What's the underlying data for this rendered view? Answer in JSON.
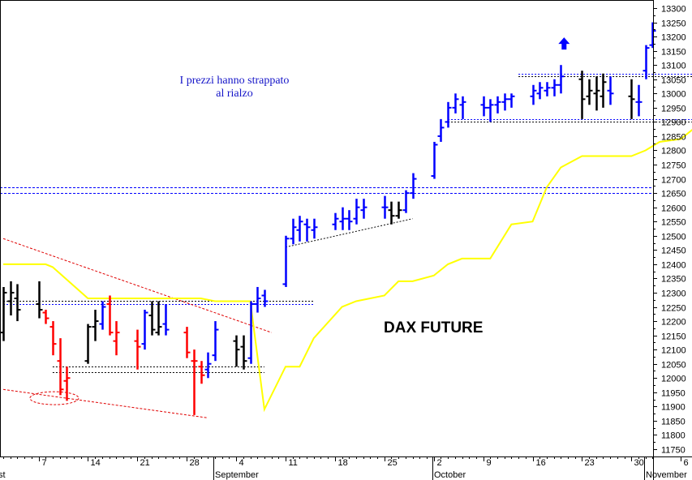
{
  "chart_data": {
    "type": "ohlc",
    "title": "DAX FUTURE",
    "annotation": {
      "line1": "I prezzi hanno strappato",
      "line2": "al rialzo"
    },
    "y_axis": {
      "min": 11725,
      "max": 13310,
      "step": 50,
      "position": "right",
      "tick_labels": [
        "13300",
        "13250",
        "13200",
        "13150",
        "13100",
        "13050",
        "13000",
        "12950",
        "12900",
        "12850",
        "12800",
        "12750",
        "12700",
        "12650",
        "12600",
        "12550",
        "12500",
        "12450",
        "12400",
        "12350",
        "12300",
        "12250",
        "12200",
        "12150",
        "12100",
        "12050",
        "12000",
        "11950",
        "11900",
        "11850",
        "11800",
        "11750"
      ]
    },
    "x_axis": {
      "start_date": "2017-08-02",
      "end_date": "2017-11-08",
      "day_labels": [
        {
          "date": "2017-08-07",
          "label": "7"
        },
        {
          "date": "2017-08-14",
          "label": "14"
        },
        {
          "date": "2017-08-21",
          "label": "21"
        },
        {
          "date": "2017-08-28",
          "label": "28"
        },
        {
          "date": "2017-09-04",
          "label": "4"
        },
        {
          "date": "2017-09-11",
          "label": "11"
        },
        {
          "date": "2017-09-18",
          "label": "18"
        },
        {
          "date": "2017-09-25",
          "label": "25"
        },
        {
          "date": "2017-10-02",
          "label": "2"
        },
        {
          "date": "2017-10-09",
          "label": "9"
        },
        {
          "date": "2017-10-16",
          "label": "16"
        },
        {
          "date": "2017-10-23",
          "label": "23"
        },
        {
          "date": "2017-10-30",
          "label": "30"
        },
        {
          "date": "2017-11-06",
          "label": "6"
        }
      ],
      "month_labels": [
        {
          "date": "2017-08-02",
          "label": "st"
        },
        {
          "date": "2017-09-01",
          "label": "September"
        },
        {
          "date": "2017-10-02",
          "label": "October"
        },
        {
          "date": "2017-11-01",
          "label": "November"
        }
      ]
    },
    "colors": {
      "up": "#0000ff",
      "down": "#ff0000",
      "neutral": "#000000",
      "stop_line": "#ffff00",
      "channel": "#ff0000",
      "band": "#0000ff"
    },
    "bars": [
      {
        "date": "2017-08-02",
        "o": 12160,
        "h": 12320,
        "l": 12130,
        "c": 12300,
        "color": "neutral"
      },
      {
        "date": "2017-08-03",
        "o": 12270,
        "h": 12340,
        "l": 12220,
        "c": 12300,
        "color": "neutral"
      },
      {
        "date": "2017-08-04",
        "o": 12280,
        "h": 12330,
        "l": 12200,
        "c": 12240,
        "color": "neutral"
      },
      {
        "date": "2017-08-07",
        "o": 12260,
        "h": 12340,
        "l": 12210,
        "c": 12240,
        "color": "neutral"
      },
      {
        "date": "2017-08-08",
        "o": 12230,
        "h": 12240,
        "l": 12190,
        "c": 12210,
        "color": "down"
      },
      {
        "date": "2017-08-09",
        "o": 12180,
        "h": 12200,
        "l": 12080,
        "c": 12120,
        "color": "down"
      },
      {
        "date": "2017-08-10",
        "o": 12060,
        "h": 12140,
        "l": 11940,
        "c": 11960,
        "color": "down"
      },
      {
        "date": "2017-08-11",
        "o": 11990,
        "h": 12040,
        "l": 11920,
        "c": 12000,
        "color": "down"
      },
      {
        "date": "2017-08-14",
        "o": 12060,
        "h": 12190,
        "l": 12050,
        "c": 12180,
        "color": "neutral"
      },
      {
        "date": "2017-08-15",
        "o": 12180,
        "h": 12240,
        "l": 12130,
        "c": 12200,
        "color": "neutral"
      },
      {
        "date": "2017-08-16",
        "o": 12190,
        "h": 12270,
        "l": 12170,
        "c": 12250,
        "color": "up"
      },
      {
        "date": "2017-08-17",
        "o": 12260,
        "h": 12290,
        "l": 12150,
        "c": 12160,
        "color": "down"
      },
      {
        "date": "2017-08-18",
        "o": 12130,
        "h": 12200,
        "l": 12080,
        "c": 12160,
        "color": "down"
      },
      {
        "date": "2017-08-21",
        "o": 12130,
        "h": 12170,
        "l": 12030,
        "c": 12110,
        "color": "down"
      },
      {
        "date": "2017-08-22",
        "o": 12120,
        "h": 12240,
        "l": 12100,
        "c": 12230,
        "color": "up"
      },
      {
        "date": "2017-08-23",
        "o": 12220,
        "h": 12270,
        "l": 12150,
        "c": 12170,
        "color": "neutral"
      },
      {
        "date": "2017-08-24",
        "o": 12160,
        "h": 12270,
        "l": 12150,
        "c": 12180,
        "color": "neutral"
      },
      {
        "date": "2017-08-25",
        "o": 12190,
        "h": 12260,
        "l": 12150,
        "c": 12170,
        "color": "up"
      },
      {
        "date": "2017-08-28",
        "o": 12160,
        "h": 12180,
        "l": 12070,
        "c": 12090,
        "color": "down"
      },
      {
        "date": "2017-08-29",
        "o": 12060,
        "h": 12100,
        "l": 11870,
        "c": 12060,
        "color": "down"
      },
      {
        "date": "2017-08-30",
        "o": 12040,
        "h": 12060,
        "l": 11980,
        "c": 12010,
        "color": "down"
      },
      {
        "date": "2017-08-31",
        "o": 12030,
        "h": 12090,
        "l": 12000,
        "c": 12050,
        "color": "up"
      },
      {
        "date": "2017-09-01",
        "o": 12080,
        "h": 12200,
        "l": 12060,
        "c": 12170,
        "color": "up"
      },
      {
        "date": "2017-09-04",
        "o": 12130,
        "h": 12150,
        "l": 12040,
        "c": 12100,
        "color": "neutral"
      },
      {
        "date": "2017-09-05",
        "o": 12110,
        "h": 12150,
        "l": 12030,
        "c": 12060,
        "color": "neutral"
      },
      {
        "date": "2017-09-06",
        "o": 12070,
        "h": 12270,
        "l": 12050,
        "c": 12260,
        "color": "up"
      },
      {
        "date": "2017-09-07",
        "o": 12260,
        "h": 12320,
        "l": 12230,
        "c": 12280,
        "color": "up"
      },
      {
        "date": "2017-09-08",
        "o": 12290,
        "h": 12310,
        "l": 12250,
        "c": 12270,
        "color": "up"
      },
      {
        "date": "2017-09-11",
        "o": 12330,
        "h": 12500,
        "l": 12320,
        "c": 12490,
        "color": "up"
      },
      {
        "date": "2017-09-12",
        "o": 12490,
        "h": 12560,
        "l": 12470,
        "c": 12530,
        "color": "up"
      },
      {
        "date": "2017-09-13",
        "o": 12520,
        "h": 12570,
        "l": 12480,
        "c": 12550,
        "color": "up"
      },
      {
        "date": "2017-09-14",
        "o": 12540,
        "h": 12560,
        "l": 12480,
        "c": 12530,
        "color": "up"
      },
      {
        "date": "2017-09-15",
        "o": 12520,
        "h": 12560,
        "l": 12490,
        "c": 12530,
        "color": "up"
      },
      {
        "date": "2017-09-18",
        "o": 12540,
        "h": 12580,
        "l": 12520,
        "c": 12560,
        "color": "up"
      },
      {
        "date": "2017-09-19",
        "o": 12550,
        "h": 12600,
        "l": 12520,
        "c": 12560,
        "color": "up"
      },
      {
        "date": "2017-09-20",
        "o": 12560,
        "h": 12590,
        "l": 12520,
        "c": 12550,
        "color": "up"
      },
      {
        "date": "2017-09-21",
        "o": 12560,
        "h": 12630,
        "l": 12540,
        "c": 12600,
        "color": "up"
      },
      {
        "date": "2017-09-22",
        "o": 12590,
        "h": 12630,
        "l": 12560,
        "c": 12600,
        "color": "up"
      },
      {
        "date": "2017-09-25",
        "o": 12600,
        "h": 12640,
        "l": 12560,
        "c": 12600,
        "color": "up"
      },
      {
        "date": "2017-09-26",
        "o": 12590,
        "h": 12620,
        "l": 12540,
        "c": 12570,
        "color": "neutral"
      },
      {
        "date": "2017-09-27",
        "o": 12570,
        "h": 12620,
        "l": 12560,
        "c": 12590,
        "color": "neutral"
      },
      {
        "date": "2017-09-28",
        "o": 12590,
        "h": 12660,
        "l": 12580,
        "c": 12650,
        "color": "up"
      },
      {
        "date": "2017-09-29",
        "o": 12650,
        "h": 12720,
        "l": 12630,
        "c": 12700,
        "color": "up"
      },
      {
        "date": "2017-10-02",
        "o": 12710,
        "h": 12830,
        "l": 12700,
        "c": 12820,
        "color": "up"
      },
      {
        "date": "2017-10-03",
        "o": 12850,
        "h": 12910,
        "l": 12830,
        "c": 12880,
        "color": "up"
      },
      {
        "date": "2017-10-04",
        "o": 12900,
        "h": 12970,
        "l": 12880,
        "c": 12950,
        "color": "up"
      },
      {
        "date": "2017-10-05",
        "o": 12950,
        "h": 13000,
        "l": 12930,
        "c": 12980,
        "color": "up"
      },
      {
        "date": "2017-10-06",
        "o": 12960,
        "h": 12990,
        "l": 12910,
        "c": 12970,
        "color": "up"
      },
      {
        "date": "2017-10-09",
        "o": 12960,
        "h": 12990,
        "l": 12920,
        "c": 12950,
        "color": "up"
      },
      {
        "date": "2017-10-10",
        "o": 12950,
        "h": 12980,
        "l": 12900,
        "c": 12960,
        "color": "up"
      },
      {
        "date": "2017-10-11",
        "o": 12960,
        "h": 12990,
        "l": 12930,
        "c": 12970,
        "color": "up"
      },
      {
        "date": "2017-10-12",
        "o": 12970,
        "h": 13000,
        "l": 12940,
        "c": 12980,
        "color": "up"
      },
      {
        "date": "2017-10-13",
        "o": 12980,
        "h": 13000,
        "l": 12950,
        "c": 12990,
        "color": "up"
      },
      {
        "date": "2017-10-16",
        "o": 12990,
        "h": 13030,
        "l": 12960,
        "c": 13010,
        "color": "up"
      },
      {
        "date": "2017-10-17",
        "o": 13000,
        "h": 13040,
        "l": 12980,
        "c": 13020,
        "color": "up"
      },
      {
        "date": "2017-10-18",
        "o": 13010,
        "h": 13040,
        "l": 12990,
        "c": 13020,
        "color": "up"
      },
      {
        "date": "2017-10-19",
        "o": 13020,
        "h": 13050,
        "l": 12990,
        "c": 13030,
        "color": "up"
      },
      {
        "date": "2017-10-20",
        "o": 13030,
        "h": 13100,
        "l": 13000,
        "c": 13060,
        "color": "up"
      },
      {
        "date": "2017-10-23",
        "o": 13050,
        "h": 13080,
        "l": 12910,
        "c": 12980,
        "color": "neutral"
      },
      {
        "date": "2017-10-24",
        "o": 12990,
        "h": 13050,
        "l": 12960,
        "c": 13010,
        "color": "neutral"
      },
      {
        "date": "2017-10-25",
        "o": 13000,
        "h": 13060,
        "l": 12940,
        "c": 13010,
        "color": "neutral"
      },
      {
        "date": "2017-10-26",
        "o": 12990,
        "h": 13070,
        "l": 12950,
        "c": 13040,
        "color": "neutral"
      },
      {
        "date": "2017-10-27",
        "o": 13010,
        "h": 13060,
        "l": 12960,
        "c": 13000,
        "color": "up"
      },
      {
        "date": "2017-10-30",
        "o": 12990,
        "h": 13050,
        "l": 12910,
        "c": 12980,
        "color": "neutral"
      },
      {
        "date": "2017-10-31",
        "o": 12970,
        "h": 13030,
        "l": 12920,
        "c": 12970,
        "color": "up"
      },
      {
        "date": "2017-11-01",
        "o": 13080,
        "h": 13170,
        "l": 13050,
        "c": 13160,
        "color": "up"
      },
      {
        "date": "2017-11-02",
        "o": 13170,
        "h": 13250,
        "l": 13160,
        "c": 13220,
        "color": "up"
      }
    ],
    "stop_line": [
      {
        "date": "2017-08-02",
        "y": 12400
      },
      {
        "date": "2017-08-08",
        "y": 12400
      },
      {
        "date": "2017-08-09",
        "y": 12390
      },
      {
        "date": "2017-08-14",
        "y": 12280
      },
      {
        "date": "2017-08-30",
        "y": 12280
      },
      {
        "date": "2017-09-01",
        "y": 12270
      },
      {
        "date": "2017-09-06",
        "y": 12270
      },
      {
        "date": "2017-09-08",
        "y": 11890
      },
      {
        "date": "2017-09-11",
        "y": 12040
      },
      {
        "date": "2017-09-13",
        "y": 12040
      },
      {
        "date": "2017-09-15",
        "y": 12140
      },
      {
        "date": "2017-09-19",
        "y": 12250
      },
      {
        "date": "2017-09-21",
        "y": 12270
      },
      {
        "date": "2017-09-25",
        "y": 12290
      },
      {
        "date": "2017-09-27",
        "y": 12340
      },
      {
        "date": "2017-09-29",
        "y": 12340
      },
      {
        "date": "2017-10-02",
        "y": 12360
      },
      {
        "date": "2017-10-04",
        "y": 12400
      },
      {
        "date": "2017-10-06",
        "y": 12420
      },
      {
        "date": "2017-10-10",
        "y": 12420
      },
      {
        "date": "2017-10-13",
        "y": 12540
      },
      {
        "date": "2017-10-16",
        "y": 12550
      },
      {
        "date": "2017-10-18",
        "y": 12670
      },
      {
        "date": "2017-10-20",
        "y": 12740
      },
      {
        "date": "2017-10-23",
        "y": 12780
      },
      {
        "date": "2017-10-30",
        "y": 12780
      },
      {
        "date": "2017-11-01",
        "y": 12800
      },
      {
        "date": "2017-11-03",
        "y": 12830
      },
      {
        "date": "2017-11-06",
        "y": 12840
      },
      {
        "date": "2017-11-08",
        "y": 12880
      },
      {
        "date": "2017-11-10",
        "y": 12880
      },
      {
        "date": "2017-11-14",
        "y": 12900
      },
      {
        "date": "2017-11-16",
        "y": 12990
      }
    ],
    "h_bands": [
      {
        "y": 12670,
        "style": "dashed-blue"
      },
      {
        "y": 12650,
        "style": "dashed-blue"
      }
    ],
    "channel_lines": [
      {
        "from": {
          "date": "2017-08-02",
          "y": 12490
        },
        "to": {
          "date": "2017-09-09",
          "y": 12160
        }
      },
      {
        "from": {
          "date": "2017-08-02",
          "y": 11960
        },
        "to": {
          "date": "2017-08-31",
          "y": 11860
        }
      }
    ],
    "support_lines": [
      {
        "y": 12270,
        "from": "2017-08-02",
        "to": "2017-09-15",
        "style": "dashed-black"
      },
      {
        "y": 12260,
        "from": "2017-08-02",
        "to": "2017-09-15",
        "style": "dashed-blue"
      },
      {
        "y": 12040,
        "from": "2017-08-09",
        "to": "2017-09-08",
        "style": "dashed-black"
      },
      {
        "y": 12020,
        "from": "2017-08-09",
        "to": "2017-09-08",
        "style": "dashed-black"
      },
      {
        "y": 13070,
        "from": "2017-10-14",
        "to": "2017-11-12",
        "style": "dashed-blue"
      },
      {
        "y": 13060,
        "from": "2017-10-14",
        "to": "2017-11-12",
        "style": "dashed-black"
      },
      {
        "y": 12910,
        "from": "2017-10-04",
        "to": "2017-11-12",
        "style": "dashed-blue"
      },
      {
        "y": 12900,
        "from": "2017-10-04",
        "to": "2017-11-12",
        "style": "dashed-black"
      }
    ],
    "trendline": {
      "from": {
        "date": "2017-09-11",
        "y": 12460
      },
      "to": {
        "date": "2017-09-29",
        "y": 12560
      }
    },
    "ellipse": {
      "date": "2017-08-09",
      "y": 11935
    },
    "arrow": {
      "date": "2017-10-30",
      "y": 13160,
      "direction": "up"
    }
  }
}
